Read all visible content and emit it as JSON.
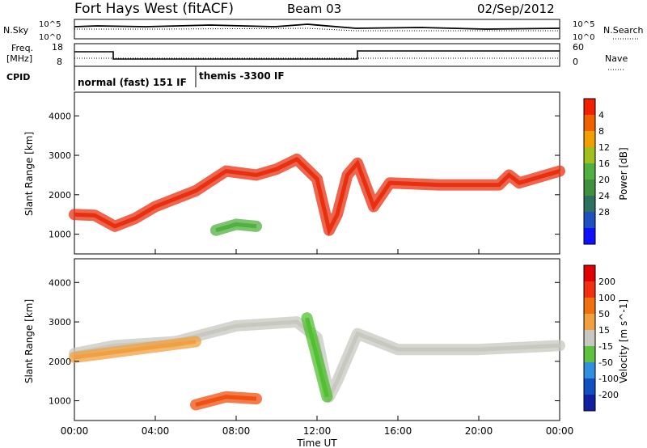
{
  "header": {
    "title": "Fort Hays West (fitACF)",
    "beam": "Beam 03",
    "date": "02/Sep/2012"
  },
  "top_strip": {
    "nsky_label": "N.Sky",
    "nsearch_label": "N.Search",
    "nsky_ticks": [
      "10^5",
      "10^0"
    ],
    "nsearch_ticks": [
      "10^5",
      "10^0"
    ],
    "freq_label": "Freq.",
    "freq_unit": "[MHz]",
    "freq_ticks": [
      "18",
      "8"
    ],
    "nave_label": "Nave",
    "nave_ticks": [
      "60",
      "0"
    ],
    "cpid_label": "CPID",
    "cpid_segments": [
      {
        "label": "normal (fast) 151 IF",
        "start_hour": 0.0,
        "end_hour": 6.0
      },
      {
        "label": "themis -3300 IF",
        "start_hour": 6.0,
        "end_hour": 24.0
      }
    ]
  },
  "chart_data": [
    {
      "type": "heatmap",
      "title": "",
      "xlabel": "",
      "ylabel": "Slant Range [km]",
      "xlim": [
        0,
        24
      ],
      "ylim": [
        500,
        4600
      ],
      "yticks": [
        "1000",
        "2000",
        "3000",
        "4000"
      ],
      "colorbar": {
        "label": "Power [dB]",
        "range": [
          0,
          32
        ],
        "ticks": [
          "4",
          "8",
          "12",
          "16",
          "20",
          "24",
          "28"
        ],
        "colors": [
          "#1010ff",
          "#2050c0",
          "#307060",
          "#409040",
          "#50b040",
          "#a0c020",
          "#f0a000",
          "#f06000",
          "#f02000"
        ]
      },
      "bands": [
        {
          "name": "main",
          "points": [
            [
              0,
              1500
            ],
            [
              1,
              1480
            ],
            [
              2,
              1200
            ],
            [
              3,
              1400
            ],
            [
              4,
              1700
            ],
            [
              6,
              2100
            ],
            [
              7.5,
              2600
            ],
            [
              9,
              2500
            ],
            [
              10,
              2650
            ],
            [
              11,
              2900
            ],
            [
              12,
              2400
            ],
            [
              12.6,
              1100
            ],
            [
              13,
              1500
            ],
            [
              13.5,
              2500
            ],
            [
              14,
              2800
            ],
            [
              14.8,
              1700
            ],
            [
              15.6,
              2300
            ],
            [
              18,
              2250
            ],
            [
              21,
              2250
            ],
            [
              21.5,
              2500
            ],
            [
              22,
              2300
            ],
            [
              24,
              2600
            ]
          ],
          "color": "#e83010"
        },
        {
          "name": "lower",
          "points": [
            [
              7,
              1100
            ],
            [
              8,
              1250
            ],
            [
              9,
              1200
            ]
          ],
          "color": "#50b040"
        }
      ]
    },
    {
      "type": "heatmap",
      "title": "",
      "xlabel": "Time UT",
      "ylabel": "Slant Range [km]",
      "xlim": [
        0,
        24
      ],
      "ylim": [
        500,
        4600
      ],
      "xticks": [
        "00:00",
        "04:00",
        "08:00",
        "12:00",
        "16:00",
        "20:00",
        "00:00"
      ],
      "yticks": [
        "1000",
        "2000",
        "3000",
        "4000"
      ],
      "colorbar": {
        "label": "Velocity [m s^-1]",
        "range": [
          -250,
          250
        ],
        "ticks": [
          "200",
          "100",
          "50",
          "15",
          "-15",
          "-50",
          "-100",
          "-200"
        ],
        "colors": [
          "#1020a0",
          "#1050c0",
          "#3090e0",
          "#60c040",
          "#c8c8c0",
          "#f0a040",
          "#f07010",
          "#f03010",
          "#e00000"
        ]
      },
      "bands": [
        {
          "name": "ground",
          "points": [
            [
              0,
              2200
            ],
            [
              2,
              2400
            ],
            [
              5,
              2500
            ],
            [
              8,
              2900
            ],
            [
              11,
              3000
            ],
            [
              12,
              2600
            ],
            [
              12.6,
              1100
            ],
            [
              13,
              1500
            ],
            [
              14,
              2700
            ],
            [
              16,
              2300
            ],
            [
              20,
              2300
            ],
            [
              24,
              2400
            ]
          ],
          "color": "#c8c8c0"
        },
        {
          "name": "orange-west",
          "points": [
            [
              0,
              2100
            ],
            [
              3,
              2300
            ],
            [
              6,
              2500
            ]
          ],
          "color": "#f0a040"
        },
        {
          "name": "orange-patch",
          "points": [
            [
              6,
              900
            ],
            [
              7.5,
              1100
            ],
            [
              9,
              1050
            ]
          ],
          "color": "#f05010"
        },
        {
          "name": "green-streak",
          "points": [
            [
              11.5,
              3100
            ],
            [
              12.5,
              1100
            ]
          ],
          "color": "#50c030"
        }
      ]
    }
  ]
}
